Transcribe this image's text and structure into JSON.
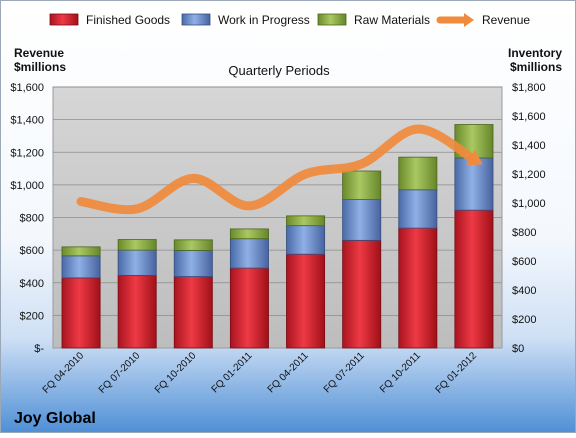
{
  "chart_data": {
    "type": "bar",
    "subtype": "stacked-bar-with-line",
    "title": "Quarterly Periods",
    "company": "Joy Global",
    "categories": [
      "FQ 04-2010",
      "FQ 07-2010",
      "FQ 10-2010",
      "FQ 01-2011",
      "FQ 04-2011",
      "FQ 07-2011",
      "FQ 10-2011",
      "FQ 01-2012"
    ],
    "series": [
      {
        "name": "Finished Goods",
        "axis": "left",
        "color": "#e8303c",
        "values": [
          430,
          445,
          438,
          490,
          575,
          660,
          735,
          845
        ]
      },
      {
        "name": "Work in Progress",
        "axis": "left",
        "color": "#6b8ed0",
        "values": [
          135,
          155,
          160,
          180,
          175,
          250,
          235,
          320
        ]
      },
      {
        "name": "Raw Materials",
        "axis": "left",
        "color": "#8fb04a",
        "values": [
          55,
          65,
          65,
          60,
          60,
          175,
          200,
          205
        ]
      },
      {
        "name": "Revenue",
        "axis": "right",
        "type": "line",
        "color": "#f08a3c",
        "values": [
          1010,
          960,
          1170,
          980,
          1200,
          1270,
          1510,
          1300
        ]
      }
    ],
    "left_axis": {
      "label_lines": [
        "Revenue",
        "$millions"
      ],
      "min": 0,
      "max": 1600,
      "step": 200,
      "tick_labels": [
        "$-",
        "$200",
        "$400",
        "$600",
        "$800",
        "$1,000",
        "$1,200",
        "$1,400",
        "$1,600"
      ]
    },
    "right_axis": {
      "label_lines": [
        "Inventory",
        "$millions"
      ],
      "min": 0,
      "max": 1800,
      "step": 200,
      "tick_labels": [
        "$0",
        "$200",
        "$400",
        "$600",
        "$800",
        "$1,000",
        "$1,200",
        "$1,400",
        "$1,600",
        "$1,800"
      ]
    },
    "legend_position": "top",
    "grid": true
  }
}
